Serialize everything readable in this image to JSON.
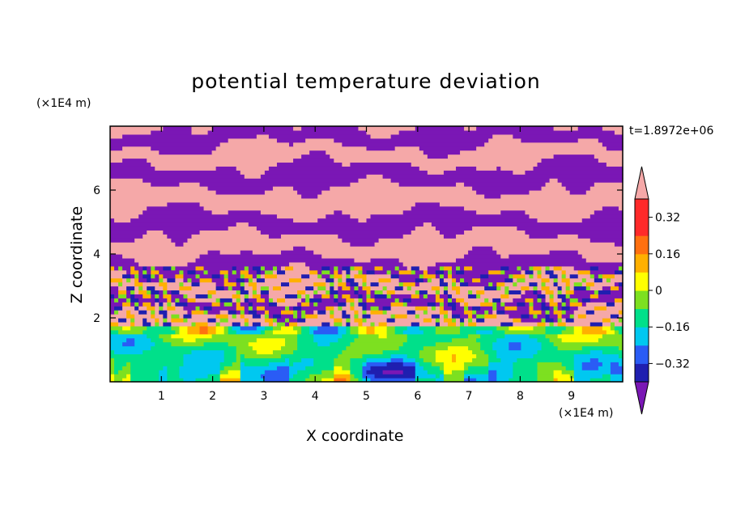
{
  "chart_data": {
    "type": "heatmap",
    "title": "potential temperature deviation",
    "xlabel": "X coordinate",
    "ylabel": "Z coordinate",
    "x_unit_label": "(×1E4 m)",
    "y_unit_label": "(×1E4 m)",
    "time_label": "t=1.8972e+06",
    "xlim": [
      0,
      10
    ],
    "ylim": [
      0,
      8
    ],
    "x_ticks": [
      1,
      2,
      3,
      4,
      5,
      6,
      7,
      8,
      9
    ],
    "y_ticks": [
      2,
      4,
      6
    ],
    "colorbar": {
      "labels": [
        "0.32",
        "0.16",
        "0",
        "−0.16",
        "−0.32"
      ],
      "label_values": [
        0.32,
        0.16,
        0,
        -0.16,
        -0.32
      ],
      "levels": [
        -0.4,
        -0.32,
        -0.24,
        -0.16,
        -0.08,
        0,
        0.08,
        0.16,
        0.24,
        0.32,
        0.4
      ],
      "colors": [
        "#7a17b5",
        "#1f1fb0",
        "#2a5cf5",
        "#00c8f0",
        "#00e08a",
        "#7de020",
        "#ffff00",
        "#ffb000",
        "#ff7010",
        "#ff2a2a",
        "#f5a8a8"
      ],
      "extend": "both"
    },
    "regions": {
      "mixed_layer_top": 1.75,
      "upper_bands": [
        {
          "z0": 7.4,
          "z1": 8.0,
          "value": -0.45
        },
        {
          "z0": 6.8,
          "z1": 7.4,
          "value": 0.45
        },
        {
          "z0": 6.1,
          "z1": 6.8,
          "value": -0.45
        },
        {
          "z0": 5.3,
          "z1": 6.1,
          "value": 0.45
        },
        {
          "z0": 4.6,
          "z1": 5.3,
          "value": -0.45
        },
        {
          "z0": 3.9,
          "z1": 4.6,
          "value": 0.45
        },
        {
          "z0": 3.3,
          "z1": 3.9,
          "value": -0.45
        },
        {
          "z0": 2.7,
          "z1": 3.3,
          "value": 0.45
        },
        {
          "z0": 2.2,
          "z1": 2.7,
          "value": -0.45
        },
        {
          "z0": 1.75,
          "z1": 2.2,
          "value": 0.45
        }
      ]
    }
  }
}
